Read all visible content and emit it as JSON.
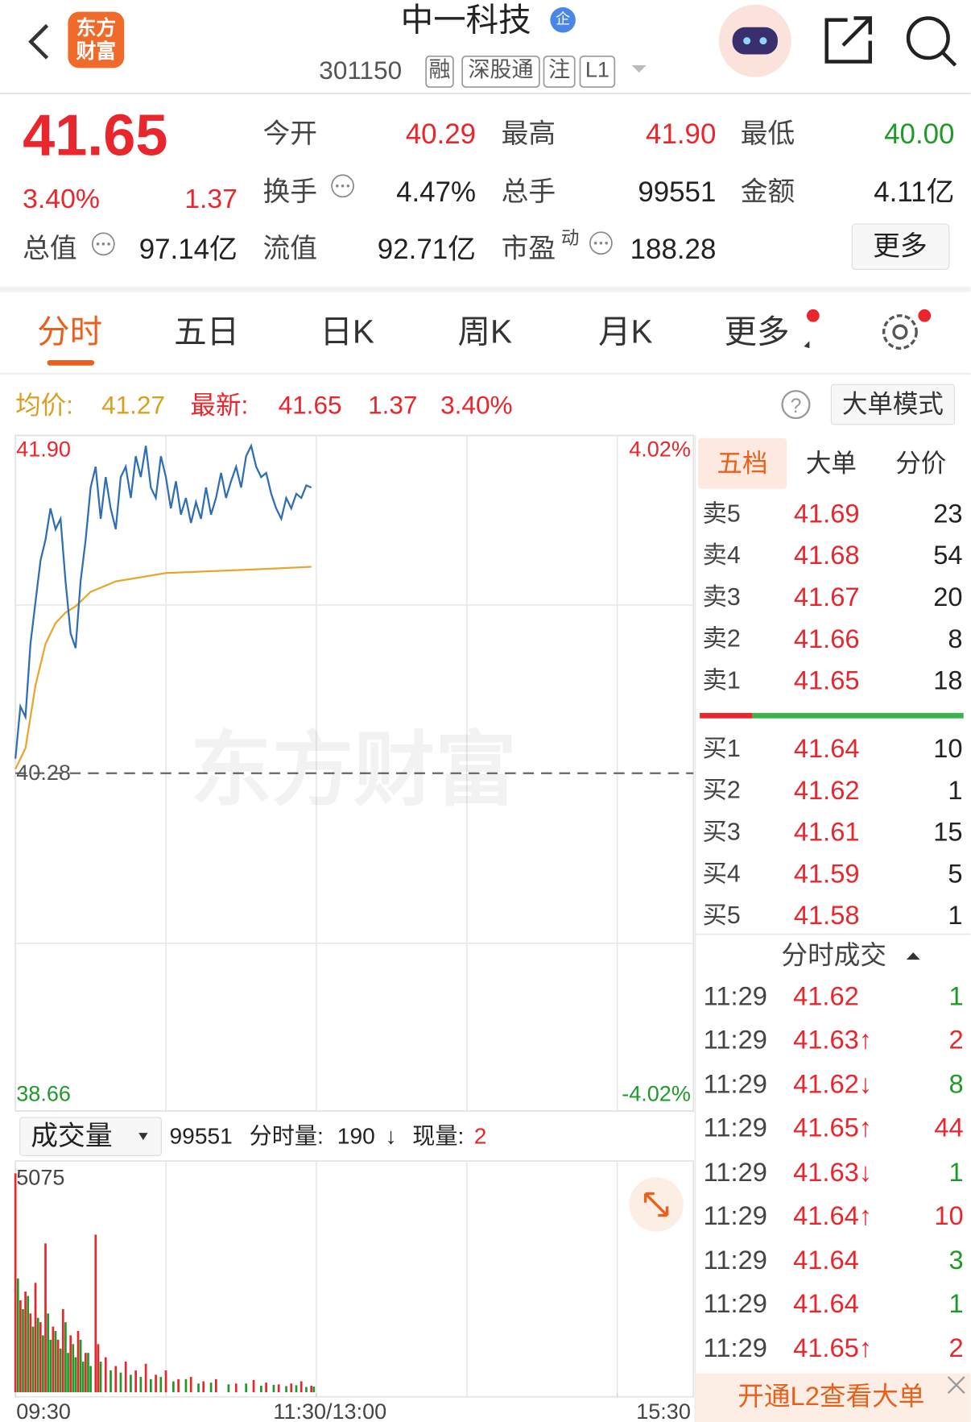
{
  "header": {
    "logo": "东方财富",
    "title": "中一科技",
    "badge": "企",
    "code": "301150",
    "tags": [
      "融",
      "深股通",
      "注",
      "L1"
    ]
  },
  "quote": {
    "price": "41.65",
    "change_pct": "3.40%",
    "change": "1.37",
    "stats": [
      {
        "label": "今开",
        "value": "40.29"
      },
      {
        "label": "最高",
        "value": "41.90"
      },
      {
        "label": "最低",
        "value": "40.00"
      },
      {
        "label": "换手",
        "value": "4.47%"
      },
      {
        "label": "总手",
        "value": "99551"
      },
      {
        "label": "金额",
        "value": "4.11亿"
      },
      {
        "label": "总值",
        "value": "97.14亿"
      },
      {
        "label": "流值",
        "value": "92.71亿"
      },
      {
        "label": "市盈",
        "sup": "动",
        "value": "188.28"
      }
    ],
    "more": "更多"
  },
  "tabs": [
    "分时",
    "五日",
    "日K",
    "周K",
    "月K",
    "更多"
  ],
  "info_bar": {
    "avg_label": "均价:",
    "avg": "41.27",
    "latest_label": "最新:",
    "latest": "41.65",
    "change": "1.37",
    "pct": "3.40%",
    "mode": "大单模式"
  },
  "intraday": {
    "watermark": "东方财富",
    "xlim": [
      0,
      240
    ],
    "ylim": [
      38.66,
      41.9
    ],
    "yticks": [
      {
        "value": 41.9,
        "label": "41.90"
      },
      {
        "value": 38.66,
        "label": "38.66"
      }
    ],
    "reference": {
      "value": 40.28,
      "label": "40.28"
    },
    "y2lim": [
      -4.02,
      4.02
    ],
    "y2ticks": [
      {
        "value": 4.02,
        "label": "4.02%"
      },
      {
        "value": -4.02,
        "label": "-4.02%"
      }
    ],
    "xticks": [
      {
        "value": 0,
        "label": "09:30"
      },
      {
        "value": 120,
        "label": "11:30/13:00"
      },
      {
        "value": 240,
        "label": "15:30"
      }
    ],
    "price": {
      "color": "#2f6db5",
      "x": [
        0,
        2,
        4,
        6,
        8,
        10,
        12,
        14,
        16,
        18,
        20,
        22,
        24,
        26,
        28,
        30,
        32,
        34,
        36,
        38,
        40,
        42,
        44,
        46,
        48,
        50,
        52,
        54,
        56,
        58,
        60,
        62,
        64,
        66,
        68,
        70,
        72,
        74,
        76,
        78,
        80,
        82,
        84,
        86,
        88,
        90,
        92,
        94,
        96,
        98,
        100,
        102,
        104,
        106,
        108,
        110,
        112,
        114,
        116,
        118
      ],
      "values": [
        40.35,
        40.6,
        40.55,
        40.9,
        41.1,
        41.3,
        41.4,
        41.55,
        41.45,
        41.5,
        41.2,
        40.95,
        40.88,
        41.2,
        41.4,
        41.65,
        41.75,
        41.5,
        41.7,
        41.55,
        41.45,
        41.7,
        41.75,
        41.6,
        41.8,
        41.7,
        41.85,
        41.65,
        41.6,
        41.8,
        41.7,
        41.55,
        41.68,
        41.52,
        41.6,
        41.48,
        41.58,
        41.5,
        41.65,
        41.52,
        41.6,
        41.72,
        41.6,
        41.68,
        41.75,
        41.65,
        41.8,
        41.85,
        41.75,
        41.7,
        41.72,
        41.62,
        41.55,
        41.5,
        41.6,
        41.55,
        41.62,
        41.6,
        41.66,
        41.65
      ]
    },
    "avg": {
      "color": "#e8a530",
      "x": [
        0,
        4,
        8,
        12,
        16,
        20,
        24,
        30,
        40,
        50,
        60,
        80,
        100,
        118
      ],
      "values": [
        40.3,
        40.4,
        40.7,
        40.9,
        41.0,
        41.05,
        41.08,
        41.15,
        41.2,
        41.22,
        41.24,
        41.25,
        41.26,
        41.27
      ]
    }
  },
  "volume": {
    "selector": "成交量",
    "total": "99551",
    "minute_label": "分时量:",
    "minute": "190",
    "arrow": "↓",
    "now_label": "现量:",
    "now": "2",
    "ylim": [
      0,
      5075
    ],
    "yticks": [
      5075
    ],
    "up": {
      "color": "#e8262c",
      "x": [
        0,
        2,
        4,
        6,
        8,
        10,
        12,
        15,
        17,
        19,
        22,
        25,
        28,
        32,
        33,
        36,
        40,
        44,
        48,
        52,
        56,
        60,
        65,
        70,
        75,
        80,
        88,
        95,
        100,
        105,
        110,
        114,
        118
      ],
      "values": [
        5000,
        2100,
        2300,
        1800,
        2500,
        1600,
        3400,
        1500,
        1200,
        1900,
        1300,
        1400,
        900,
        3600,
        1100,
        800,
        600,
        700,
        500,
        650,
        400,
        500,
        300,
        350,
        250,
        300,
        200,
        280,
        220,
        180,
        200,
        250,
        150
      ]
    },
    "down": {
      "color": "#1f9a2a",
      "x": [
        1,
        3,
        5,
        7,
        9,
        11,
        13,
        14,
        16,
        18,
        20,
        21,
        23,
        24,
        26,
        27,
        29,
        30,
        34,
        38,
        42,
        46,
        50,
        54,
        58,
        63,
        68,
        73,
        78,
        85,
        92,
        98,
        103,
        108,
        112,
        116,
        119
      ],
      "values": [
        2600,
        1900,
        2200,
        1500,
        1700,
        1300,
        1800,
        1200,
        1400,
        1000,
        1600,
        900,
        1100,
        800,
        1200,
        700,
        900,
        600,
        700,
        500,
        450,
        400,
        350,
        300,
        350,
        250,
        300,
        200,
        220,
        180,
        200,
        150,
        170,
        140,
        160,
        120,
        130
      ]
    }
  },
  "order_book": {
    "tabs": [
      "五档",
      "大单",
      "分价"
    ],
    "asks": [
      [
        "卖5",
        "41.69",
        "23"
      ],
      [
        "卖4",
        "41.68",
        "54"
      ],
      [
        "卖3",
        "41.67",
        "20"
      ],
      [
        "卖2",
        "41.66",
        "8"
      ],
      [
        "卖1",
        "41.65",
        "18"
      ]
    ],
    "bids": [
      [
        "买1",
        "41.64",
        "10"
      ],
      [
        "买2",
        "41.62",
        "1"
      ],
      [
        "买3",
        "41.61",
        "15"
      ],
      [
        "买4",
        "41.59",
        "5"
      ],
      [
        "买5",
        "41.58",
        "1"
      ]
    ]
  },
  "trades": {
    "title": "分时成交",
    "rows": [
      {
        "time": "11:29",
        "price": "41.62",
        "volume": "1",
        "color": "#1f9a2a"
      },
      {
        "time": "11:29",
        "price": "41.63↑",
        "volume": "2",
        "color": "#e8262c"
      },
      {
        "time": "11:29",
        "price": "41.62↓",
        "volume": "8",
        "color": "#1f9a2a"
      },
      {
        "time": "11:29",
        "price": "41.65↑",
        "volume": "44",
        "color": "#e8262c"
      },
      {
        "time": "11:29",
        "price": "41.63↓",
        "volume": "1",
        "color": "#1f9a2a"
      },
      {
        "time": "11:29",
        "price": "41.64↑",
        "volume": "10",
        "color": "#e8262c"
      },
      {
        "time": "11:29",
        "price": "41.64",
        "volume": "3",
        "color": "#1f9a2a"
      },
      {
        "time": "11:29",
        "price": "41.64",
        "volume": "1",
        "color": "#1f9a2a"
      },
      {
        "time": "11:29",
        "price": "41.65↑",
        "volume": "2",
        "color": "#e8262c"
      }
    ]
  },
  "banner": "开通L2查看大单"
}
